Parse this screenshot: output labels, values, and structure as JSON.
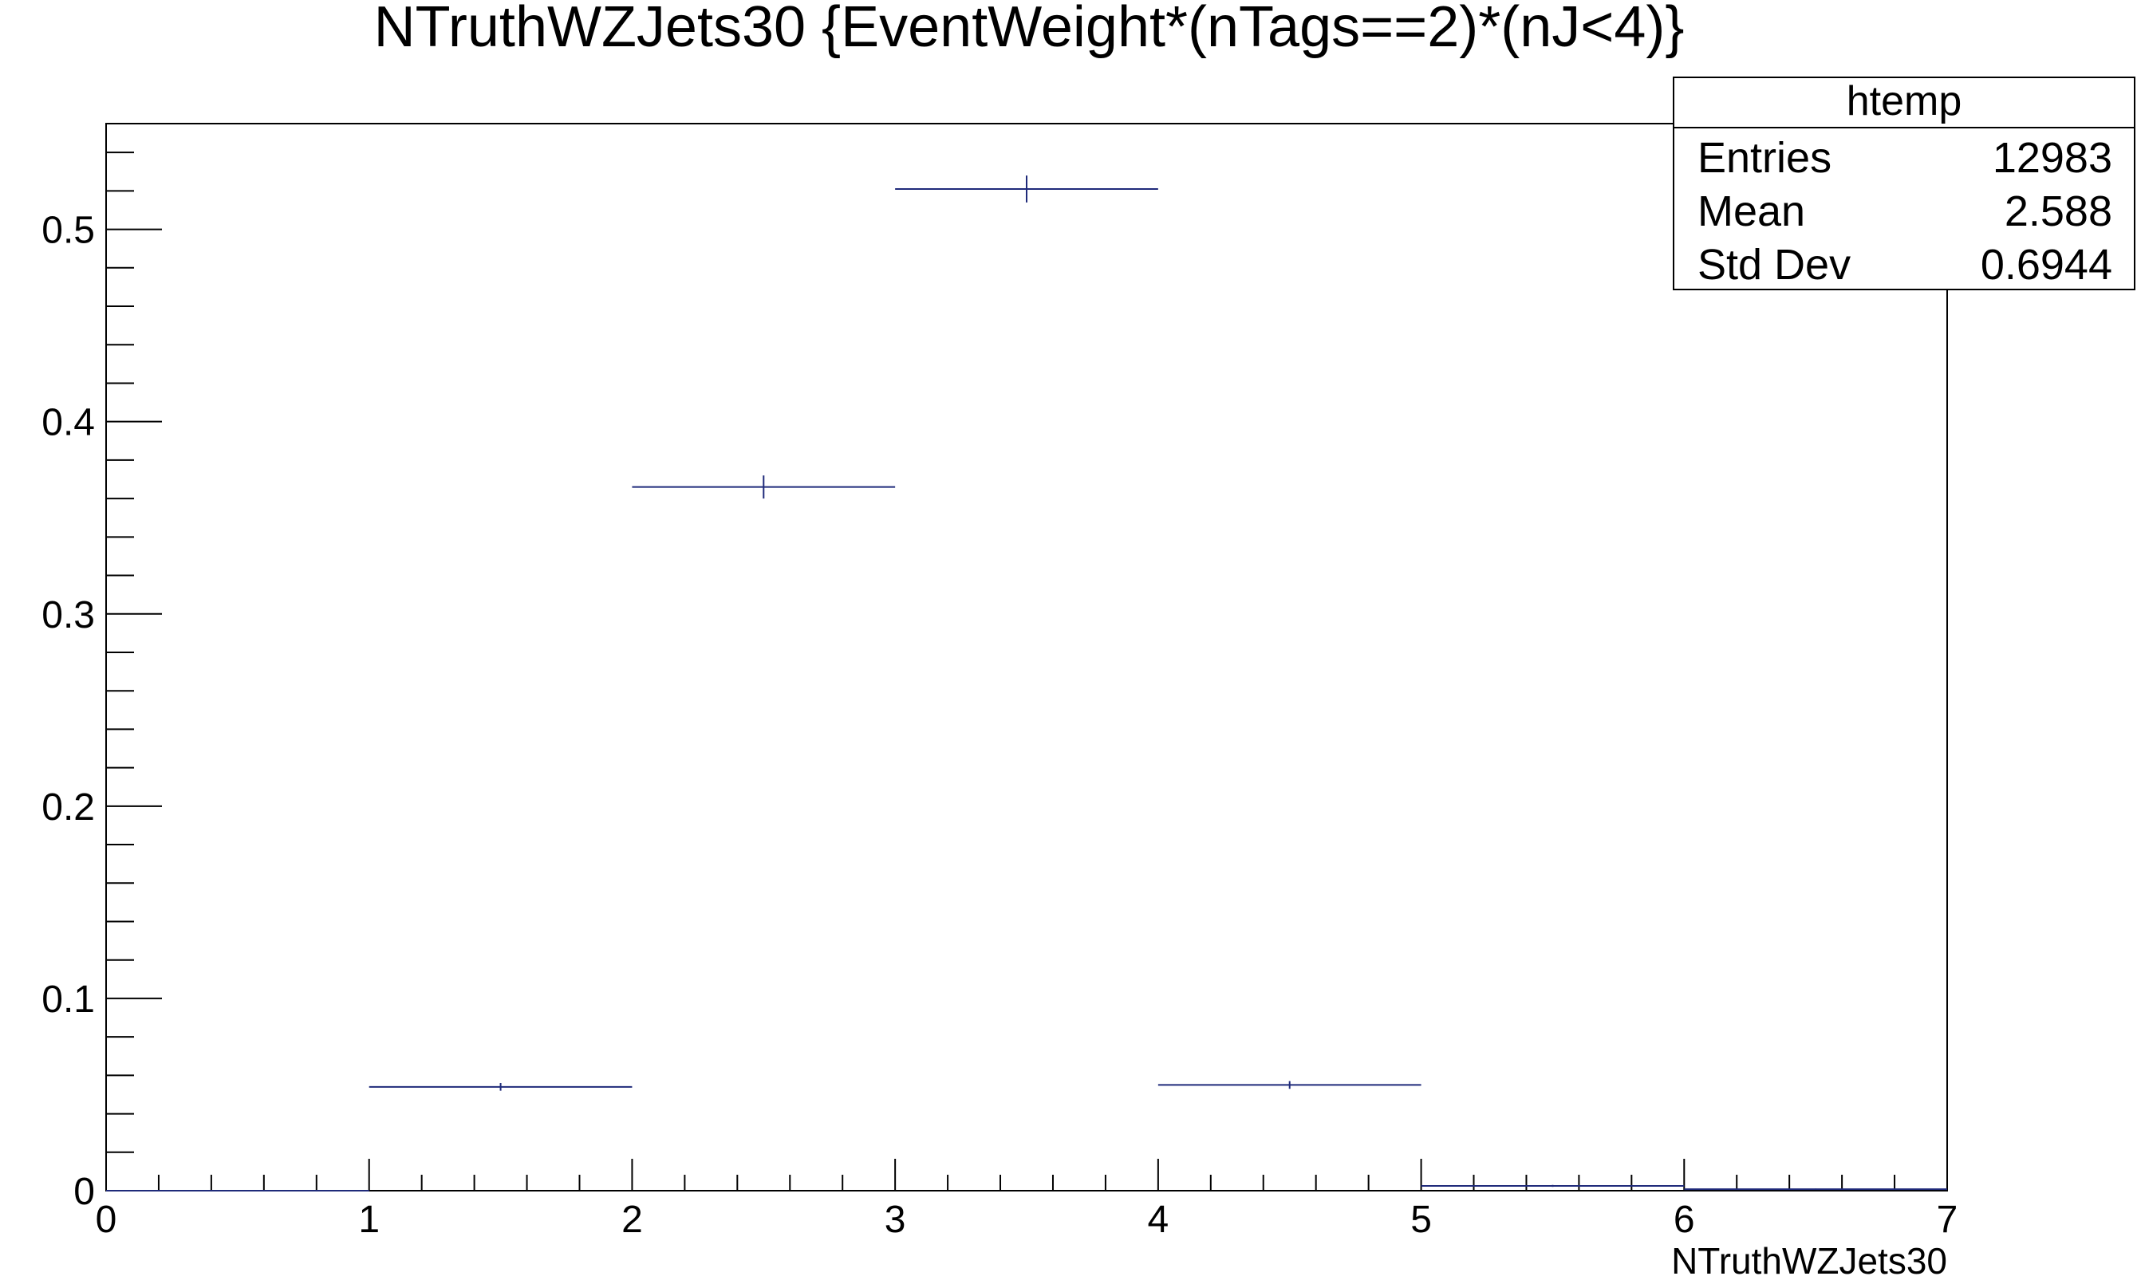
{
  "chart_data": {
    "type": "histogram",
    "title": "NTruthWZJets30 {EventWeight*(nTags==2)*(nJ<4)}",
    "xlabel": "NTruthWZJets30",
    "ylabel": "",
    "xlim": [
      0,
      7
    ],
    "ylim": [
      0,
      0.555
    ],
    "x_ticks": [
      "0",
      "1",
      "2",
      "3",
      "4",
      "5",
      "6",
      "7"
    ],
    "y_ticks": [
      "0",
      "0.1",
      "0.2",
      "0.3",
      "0.4",
      "0.5"
    ],
    "grid": false,
    "bins": [
      {
        "low": 0,
        "high": 1,
        "value": 0.0,
        "error": 0.0
      },
      {
        "low": 1,
        "high": 2,
        "value": 0.054,
        "error": 0.002
      },
      {
        "low": 2,
        "high": 3,
        "value": 0.366,
        "error": 0.006
      },
      {
        "low": 3,
        "high": 4,
        "value": 0.521,
        "error": 0.007
      },
      {
        "low": 4,
        "high": 5,
        "value": 0.055,
        "error": 0.002
      },
      {
        "low": 5,
        "high": 6,
        "value": 0.0025,
        "error": 0.0005
      },
      {
        "low": 6,
        "high": 7,
        "value": 0.0008,
        "error": 0.0003
      }
    ],
    "line_color": "#1f2a7a",
    "stats_box": {
      "name": "htemp",
      "rows": [
        {
          "label": "Entries",
          "value": "12983"
        },
        {
          "label": "Mean",
          "value": "2.588"
        },
        {
          "label": "Std Dev",
          "value": "0.6944"
        }
      ]
    }
  }
}
